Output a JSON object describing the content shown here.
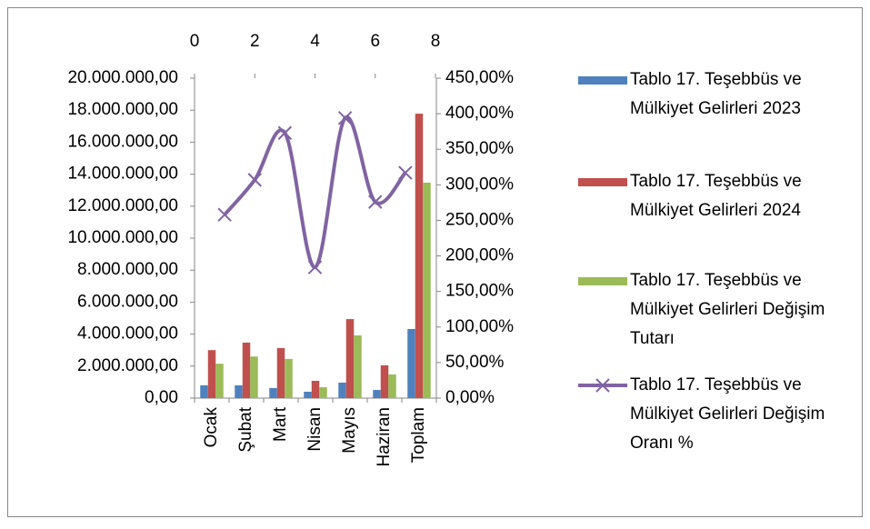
{
  "chart_data": {
    "type": "combo",
    "categories": [
      "Ocak",
      "Şubat",
      "Mart",
      "Nisan",
      "Mayıs",
      "Haziran",
      "Toplam"
    ],
    "series": [
      {
        "name": "Tablo 17. Teşebbüs ve Mülkiyet Gelirleri 2023",
        "type": "bar",
        "color": "#4f81bd",
        "values": [
          800000,
          800000,
          630000,
          400000,
          970000,
          510000,
          4320000
        ]
      },
      {
        "name": "Tablo 17. Teşebbüs ve Mülkiyet Gelirleri 2024",
        "type": "bar",
        "color": "#c0504d",
        "values": [
          3000000,
          3470000,
          3130000,
          1080000,
          4940000,
          2050000,
          17780000
        ]
      },
      {
        "name": "Tablo 17. Teşebbüs ve Mülkiyet Gelirleri Değişim Tutarı",
        "type": "bar",
        "color": "#9bbb59",
        "values": [
          2150000,
          2600000,
          2450000,
          680000,
          3920000,
          1480000,
          13470000
        ]
      },
      {
        "name": "Tablo 17. Teşebbüs ve Mülkiyet Gelirleri Değişim Oranı %",
        "type": "line",
        "axis": "y2",
        "color": "#8064a2",
        "x": [
          1,
          2,
          3,
          4,
          5,
          6,
          7
        ],
        "values": [
          258,
          307,
          373,
          184,
          394,
          276,
          317
        ]
      }
    ],
    "ylim": [
      0,
      20000000
    ],
    "yticks": [
      {
        "value": 0,
        "label": "0,00"
      },
      {
        "value": 2000000,
        "label": "2.000.000,00"
      },
      {
        "value": 4000000,
        "label": "4.000.000,00"
      },
      {
        "value": 6000000,
        "label": "6.000.000,00"
      },
      {
        "value": 8000000,
        "label": "8.000.000,00"
      },
      {
        "value": 10000000,
        "label": "10.000.000,00"
      },
      {
        "value": 12000000,
        "label": "12.000.000,00"
      },
      {
        "value": 14000000,
        "label": "14.000.000,00"
      },
      {
        "value": 16000000,
        "label": "16.000.000,00"
      },
      {
        "value": 18000000,
        "label": "18.000.000,00"
      },
      {
        "value": 20000000,
        "label": "20.000.000,00"
      }
    ],
    "y2lim": [
      0,
      450
    ],
    "y2ticks": [
      {
        "value": 0,
        "label": "0,00%"
      },
      {
        "value": 50,
        "label": "50,00%"
      },
      {
        "value": 100,
        "label": "100,00%"
      },
      {
        "value": 150,
        "label": "150,00%"
      },
      {
        "value": 200,
        "label": "200,00%"
      },
      {
        "value": 250,
        "label": "250,00%"
      },
      {
        "value": 300,
        "label": "300,00%"
      },
      {
        "value": 350,
        "label": "350,00%"
      },
      {
        "value": 400,
        "label": "400,00%"
      },
      {
        "value": 450,
        "label": "450,00%"
      }
    ],
    "xlim": [
      0,
      8
    ],
    "xticks": [
      0,
      2,
      4,
      6,
      8
    ]
  }
}
